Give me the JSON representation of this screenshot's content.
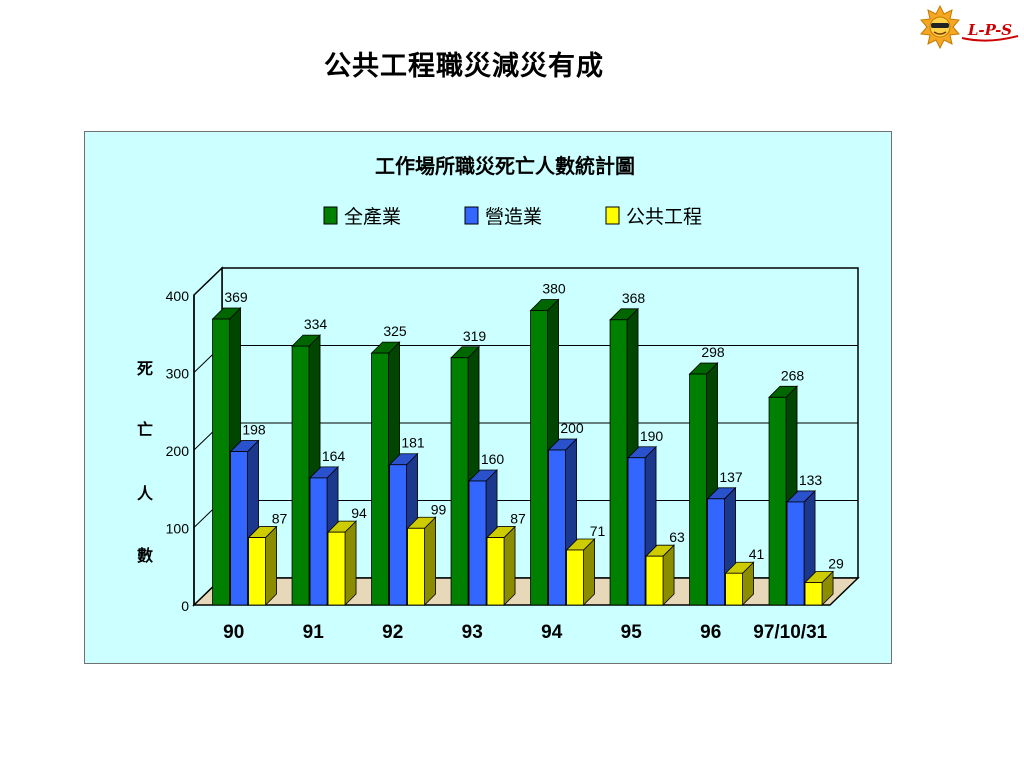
{
  "slide_title": "公共工程職災減災有成",
  "logo": {
    "text": "L-P-S"
  },
  "chart_data": {
    "type": "bar",
    "title": "工作場所職災死亡人數統計圖",
    "ylabel": "死亡人數",
    "ylabel_chars": [
      "死",
      "亡",
      "人",
      "數"
    ],
    "xlabel": "",
    "categories": [
      "90",
      "91",
      "92",
      "93",
      "94",
      "95",
      "96",
      "97/10/31"
    ],
    "series": [
      {
        "name": "全產業",
        "color": "#008000",
        "values": [
          369,
          334,
          325,
          319,
          380,
          368,
          298,
          268
        ]
      },
      {
        "name": "營造業",
        "color": "#3366ff",
        "values": [
          198,
          164,
          181,
          160,
          200,
          190,
          137,
          133
        ]
      },
      {
        "name": "公共工程",
        "color": "#ffff00",
        "values": [
          87,
          94,
          99,
          87,
          71,
          63,
          41,
          29
        ]
      }
    ],
    "yticks": [
      "0",
      "100",
      "200",
      "300",
      "400"
    ],
    "ylim": [
      0,
      400
    ],
    "grid": true,
    "legend_position": "top"
  }
}
